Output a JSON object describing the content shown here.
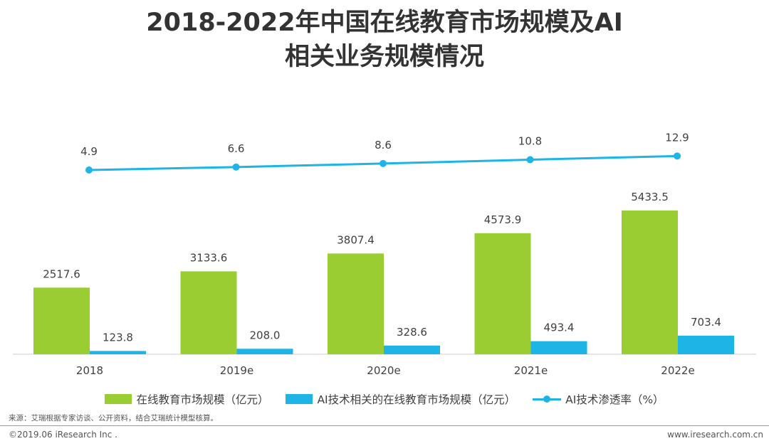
{
  "title": {
    "line1": "2018-2022年中国在线教育市场规模及AI",
    "line2": "相关业务规模情况"
  },
  "chart_data": {
    "type": "bar",
    "categories": [
      "2018",
      "2019e",
      "2020e",
      "2021e",
      "2022e"
    ],
    "series": [
      {
        "name": "在线教育市场规模（亿元）",
        "type": "bar",
        "color": "#9ACD32",
        "values": [
          2517.6,
          3133.6,
          3807.4,
          4573.9,
          5433.5
        ],
        "labels": [
          "2517.6",
          "3133.6",
          "3807.4",
          "4573.9",
          "5433.5"
        ]
      },
      {
        "name": "AI技术相关的在线教育市场规模（亿元）",
        "type": "bar",
        "color": "#1EB4E6",
        "values": [
          123.8,
          208.0,
          328.6,
          493.4,
          703.4
        ],
        "labels": [
          "123.8",
          "208.0",
          "328.6",
          "493.4",
          "703.4"
        ]
      },
      {
        "name": "AI技术渗透率（%）",
        "type": "line",
        "color": "#1EB4E6",
        "values": [
          4.9,
          6.6,
          8.6,
          10.8,
          12.9
        ],
        "labels": [
          "4.9",
          "6.6",
          "8.6",
          "10.8",
          "12.9"
        ]
      }
    ],
    "legend_position": "bottom",
    "grid": false
  },
  "source": "来源：艾瑞根据专家访谈、公开资料，结合艾瑞统计模型核算。",
  "copyright": "©2019.06 iResearch Inc .",
  "website": "www.iresearch.com.cn"
}
